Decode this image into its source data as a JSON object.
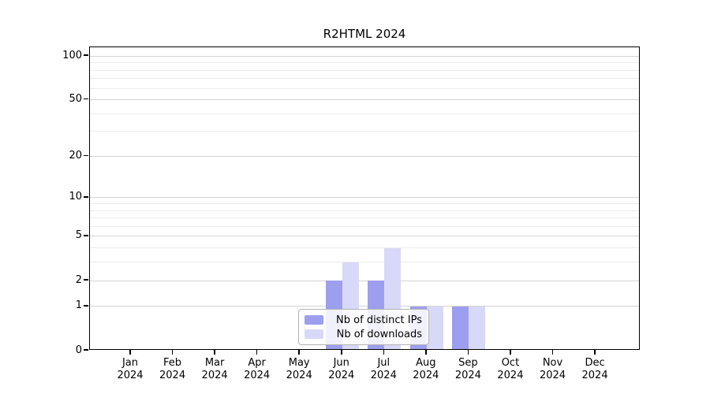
{
  "title": "R2HTML 2024",
  "colors": {
    "background": "#ffffff",
    "axis": "#000000",
    "grid_major": "#d4d4d4",
    "grid_minor": "#ececec",
    "legend_border": "#b3b3b3",
    "bar_distinct_ips": "#9e9eef",
    "bar_downloads": "#d8d8f8"
  },
  "chart_data": {
    "type": "bar",
    "title": "R2HTML 2024",
    "categories": [
      {
        "month": "Jan",
        "year": "2024"
      },
      {
        "month": "Feb",
        "year": "2024"
      },
      {
        "month": "Mar",
        "year": "2024"
      },
      {
        "month": "Apr",
        "year": "2024"
      },
      {
        "month": "May",
        "year": "2024"
      },
      {
        "month": "Jun",
        "year": "2024"
      },
      {
        "month": "Jul",
        "year": "2024"
      },
      {
        "month": "Aug",
        "year": "2024"
      },
      {
        "month": "Sep",
        "year": "2024"
      },
      {
        "month": "Oct",
        "year": "2024"
      },
      {
        "month": "Nov",
        "year": "2024"
      },
      {
        "month": "Dec",
        "year": "2024"
      }
    ],
    "series": [
      {
        "name": "Nb of distinct IPs",
        "key": "distinct-ips",
        "color": "#9e9eef",
        "values": [
          0,
          0,
          0,
          0,
          0,
          2,
          2,
          1,
          1,
          0,
          0,
          0
        ]
      },
      {
        "name": "Nb of downloads",
        "key": "downloads",
        "color": "#d8d8f8",
        "values": [
          0,
          0,
          0,
          0,
          0,
          3,
          4,
          1,
          1,
          0,
          0,
          0
        ]
      }
    ],
    "y_axis": {
      "scale": "log1p",
      "max": 115,
      "tick_values": [
        0,
        1,
        2,
        5,
        10,
        20,
        50,
        100
      ],
      "major_gridlines": [
        1,
        2,
        5,
        10,
        20,
        50,
        100
      ],
      "minor_gridlines": [
        3,
        4,
        6,
        7,
        8,
        9,
        30,
        40,
        60,
        70,
        80,
        90
      ]
    },
    "legend_position": "bottom-center-inside",
    "grid": true
  }
}
